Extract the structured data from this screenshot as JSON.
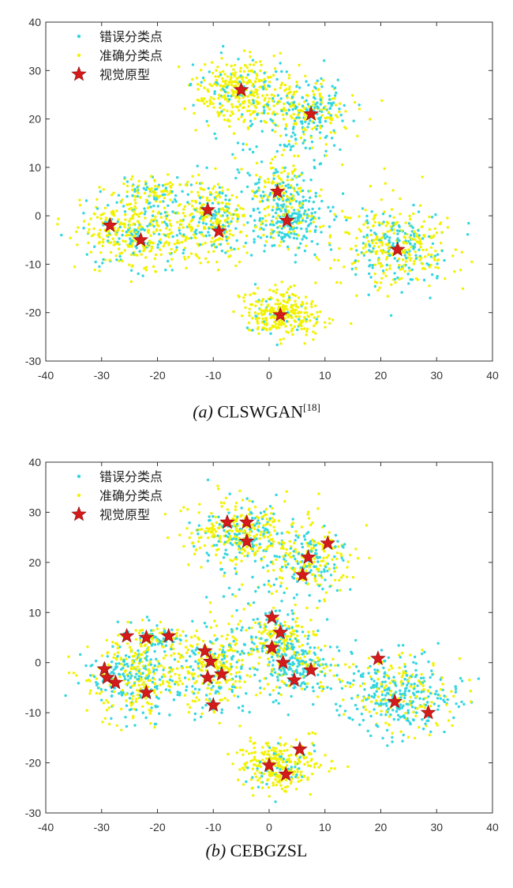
{
  "chart_data": [
    {
      "type": "scatter",
      "panel": "a",
      "caption_letter": "(a)",
      "caption_name": "CLSWGAN",
      "caption_ref": "[18]",
      "xlim": [
        -40,
        40
      ],
      "ylim": [
        -30,
        40
      ],
      "xticks": [
        -40,
        -30,
        -20,
        -10,
        0,
        10,
        20,
        30,
        40
      ],
      "yticks": [
        -30,
        -20,
        -10,
        0,
        10,
        20,
        30,
        40
      ],
      "grid": false,
      "legend_position": "top-left",
      "legend": [
        {
          "label": "错误分类点",
          "marker": "dot",
          "color": "#33d6e0"
        },
        {
          "label": "准确分类点",
          "marker": "dot",
          "color": "#f2f200"
        },
        {
          "label": "视觉原型",
          "marker": "star",
          "color": "#d41a1a"
        }
      ],
      "clusters": [
        {
          "cx": -5,
          "cy": 26,
          "sx": 4.5,
          "sy": 3.2,
          "n": 360,
          "misfrac": 0.18
        },
        {
          "cx": 7,
          "cy": 21,
          "sx": 4,
          "sy": 3.5,
          "n": 260,
          "misfrac": 0.55
        },
        {
          "cx": 2,
          "cy": 5,
          "sx": 2.5,
          "sy": 3,
          "n": 140,
          "misfrac": 0.2
        },
        {
          "cx": 4,
          "cy": -1,
          "sx": 3.5,
          "sy": 3,
          "n": 220,
          "misfrac": 0.75
        },
        {
          "cx": -24,
          "cy": -3,
          "sx": 5,
          "sy": 4,
          "n": 420,
          "misfrac": 0.3
        },
        {
          "cx": -21,
          "cy": 5,
          "sx": 3,
          "sy": 1.5,
          "n": 90,
          "misfrac": 0.3
        },
        {
          "cx": -10,
          "cy": -1,
          "sx": 3.5,
          "sy": 4,
          "n": 300,
          "misfrac": 0.35
        },
        {
          "cx": 23,
          "cy": -6,
          "sx": 5,
          "sy": 4,
          "n": 420,
          "misfrac": 0.35
        },
        {
          "cx": 2,
          "cy": -20,
          "sx": 3.5,
          "sy": 2.5,
          "n": 300,
          "misfrac": 0.1
        },
        {
          "cx": 0,
          "cy": 10,
          "sx": 6,
          "sy": 8,
          "n": 110,
          "misfrac": 0.8
        }
      ],
      "prototypes": [
        {
          "x": -5,
          "y": 26
        },
        {
          "x": 7.5,
          "y": 21
        },
        {
          "x": 1.5,
          "y": 5
        },
        {
          "x": 3.2,
          "y": -1
        },
        {
          "x": -11,
          "y": 1.2
        },
        {
          "x": -9,
          "y": -3.2
        },
        {
          "x": -28.5,
          "y": -2
        },
        {
          "x": -23,
          "y": -5
        },
        {
          "x": 23,
          "y": -7
        },
        {
          "x": 2,
          "y": -20.5
        }
      ]
    },
    {
      "type": "scatter",
      "panel": "b",
      "caption_letter": "(b)",
      "caption_name": "CEBGZSL",
      "caption_ref": "",
      "xlim": [
        -40,
        40
      ],
      "ylim": [
        -30,
        40
      ],
      "xticks": [
        -40,
        -30,
        -20,
        -10,
        0,
        10,
        20,
        30,
        40
      ],
      "yticks": [
        -30,
        -20,
        -10,
        0,
        10,
        20,
        30,
        40
      ],
      "grid": false,
      "legend_position": "top-left",
      "legend": [
        {
          "label": "错误分类点",
          "marker": "dot",
          "color": "#33d6e0"
        },
        {
          "label": "准确分类点",
          "marker": "dot",
          "color": "#f2f200"
        },
        {
          "label": "视觉原型",
          "marker": "star",
          "color": "#d41a1a"
        }
      ],
      "clusters": [
        {
          "cx": -5,
          "cy": 26,
          "sx": 4.5,
          "sy": 3.2,
          "n": 360,
          "misfrac": 0.3
        },
        {
          "cx": 7,
          "cy": 21,
          "sx": 4,
          "sy": 3.5,
          "n": 260,
          "misfrac": 0.4
        },
        {
          "cx": 2,
          "cy": 4,
          "sx": 2.5,
          "sy": 3.5,
          "n": 160,
          "misfrac": 0.25
        },
        {
          "cx": 5,
          "cy": -1,
          "sx": 3.5,
          "sy": 3,
          "n": 220,
          "misfrac": 0.7
        },
        {
          "cx": -24,
          "cy": -3,
          "sx": 5,
          "sy": 4,
          "n": 420,
          "misfrac": 0.45
        },
        {
          "cx": -21,
          "cy": 5,
          "sx": 3,
          "sy": 1.5,
          "n": 90,
          "misfrac": 0.4
        },
        {
          "cx": -10,
          "cy": -1,
          "sx": 3.5,
          "sy": 4,
          "n": 300,
          "misfrac": 0.35
        },
        {
          "cx": 23,
          "cy": -6,
          "sx": 5,
          "sy": 4,
          "n": 420,
          "misfrac": 0.6
        },
        {
          "cx": 2,
          "cy": -20,
          "sx": 3.5,
          "sy": 2.5,
          "n": 300,
          "misfrac": 0.15
        },
        {
          "cx": 0,
          "cy": 10,
          "sx": 6,
          "sy": 8,
          "n": 110,
          "misfrac": 0.8
        }
      ],
      "prototypes": [
        {
          "x": -7.5,
          "y": 28
        },
        {
          "x": -4,
          "y": 28
        },
        {
          "x": -4,
          "y": 24.2
        },
        {
          "x": 7,
          "y": 21
        },
        {
          "x": 10.5,
          "y": 23.8
        },
        {
          "x": 6,
          "y": 17.5
        },
        {
          "x": 0.5,
          "y": 9
        },
        {
          "x": 2,
          "y": 6
        },
        {
          "x": 0.5,
          "y": 3
        },
        {
          "x": 2.5,
          "y": 0
        },
        {
          "x": 7.5,
          "y": -1.5
        },
        {
          "x": 4.5,
          "y": -3.5
        },
        {
          "x": -25.5,
          "y": 5.3
        },
        {
          "x": -22,
          "y": 5
        },
        {
          "x": -18,
          "y": 5.3
        },
        {
          "x": -11.5,
          "y": 2.3
        },
        {
          "x": -10.5,
          "y": 0.2
        },
        {
          "x": -11,
          "y": -3
        },
        {
          "x": -8.5,
          "y": -2.3
        },
        {
          "x": -10,
          "y": -8.5
        },
        {
          "x": -29.5,
          "y": -1.3
        },
        {
          "x": -29,
          "y": -3
        },
        {
          "x": -27.5,
          "y": -4
        },
        {
          "x": -22,
          "y": -6
        },
        {
          "x": 19.5,
          "y": 0.8
        },
        {
          "x": 22.5,
          "y": -7.8
        },
        {
          "x": 28.5,
          "y": -10
        },
        {
          "x": 0,
          "y": -20.5
        },
        {
          "x": 3,
          "y": -22.3
        },
        {
          "x": 5.5,
          "y": -17.3
        }
      ]
    }
  ]
}
